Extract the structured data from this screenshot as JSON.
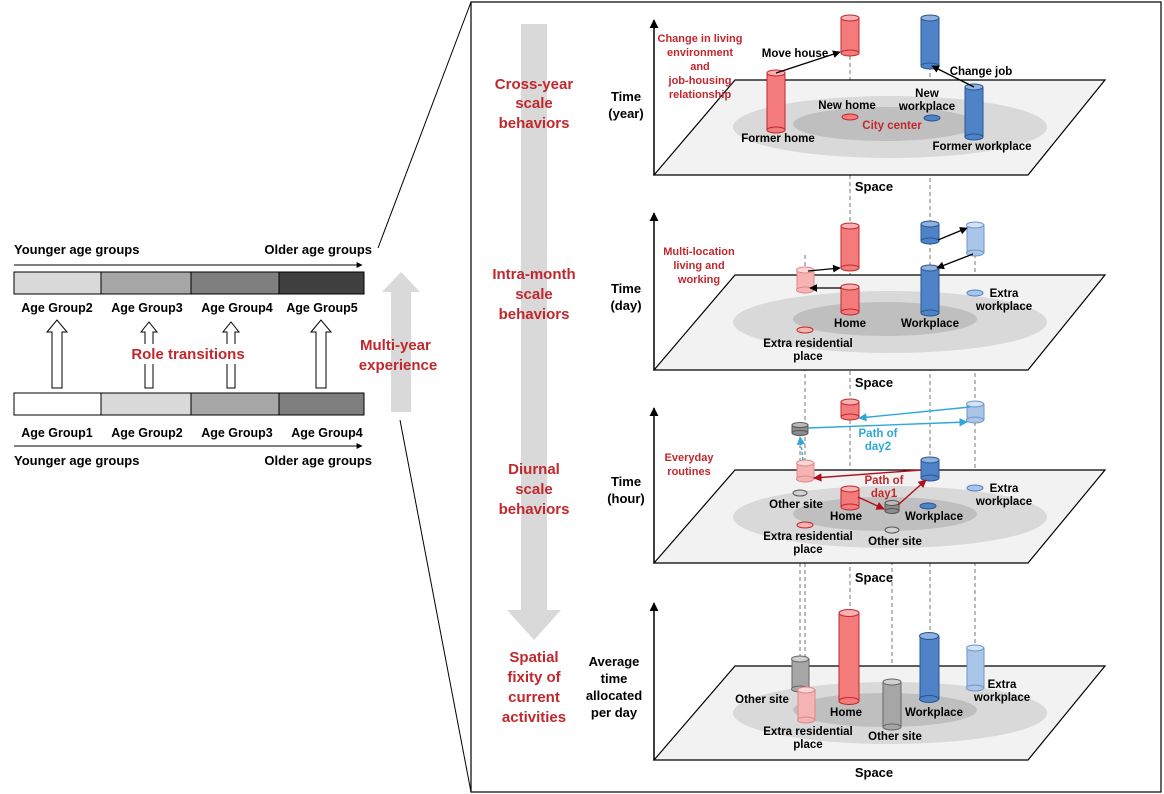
{
  "left": {
    "top_left_label": "Younger age groups",
    "top_right_label": "Older age groups",
    "bottom_left_label": "Younger age groups",
    "bottom_right_label": "Older age groups",
    "top_groups": [
      "Age Group2",
      "Age Group3",
      "Age Group4",
      "Age Group5"
    ],
    "bottom_groups": [
      "Age Group1",
      "Age Group2",
      "Age Group3",
      "Age Group4"
    ],
    "role_transitions": "Role transitions",
    "multi_year": [
      "Multi-",
      "year",
      "experience"
    ]
  },
  "scales": [
    [
      "Cross-year",
      "scale",
      "behaviors"
    ],
    [
      "Intra-month",
      "scale",
      "behaviors"
    ],
    [
      "Diurnal",
      "scale",
      "behaviors"
    ],
    [
      "Spatial",
      "fixity of",
      "current",
      "activities"
    ]
  ],
  "panels": {
    "p1": {
      "time_label": [
        "Time",
        "(year)"
      ],
      "space": "Space",
      "note": [
        "Change in living",
        "environment",
        "and",
        "job-housing",
        "relationship"
      ],
      "move_house": "Move house",
      "change_job": "Change job",
      "new_home": "New home",
      "new_workplace": [
        "New",
        "workplace"
      ],
      "city_center": "City center",
      "former_home": "Former home",
      "former_workplace": "Former workplace"
    },
    "p2": {
      "time_label": [
        "Time",
        "(day)"
      ],
      "space": "Space",
      "note": [
        "Multi-location",
        "living  and",
        "working"
      ],
      "home": "Home",
      "workplace": "Workplace",
      "extra_workplace": [
        "Extra",
        "workplace"
      ],
      "extra_residential": [
        "Extra residential",
        "place"
      ]
    },
    "p3": {
      "time_label": [
        "Time",
        "(hour)"
      ],
      "space": "Space",
      "note": [
        "Everyday",
        "routines"
      ],
      "path_day2": [
        "Path of",
        "day2"
      ],
      "path_day1": [
        "Path of",
        "day1"
      ],
      "other_site_left": "Other site",
      "other_site_mid": "Other site",
      "home": "Home",
      "workplace": "Workplace",
      "extra_workplace": [
        "Extra",
        "workplace"
      ],
      "extra_residential": [
        "Extra residential",
        "place"
      ]
    },
    "p4": {
      "time_label": [
        "Average",
        "time",
        "allocated",
        "per day"
      ],
      "space": "Space",
      "other_site_left": "Other site",
      "other_site_mid": "Other site",
      "home": "Home",
      "workplace": "Workplace",
      "extra_workplace": [
        "Extra",
        "workplace"
      ],
      "extra_residential": [
        "Extra residential",
        "place"
      ]
    }
  },
  "colors": {
    "red_text": "#c0282d",
    "blue_text": "#2fa7d8",
    "red_fill": "#f47b7b",
    "pink_fill": "#f6b3b3",
    "blue_fill": "#4f83c8",
    "lightblue_fill": "#a9c6e8",
    "gray_fill": "#a6a6a6"
  }
}
